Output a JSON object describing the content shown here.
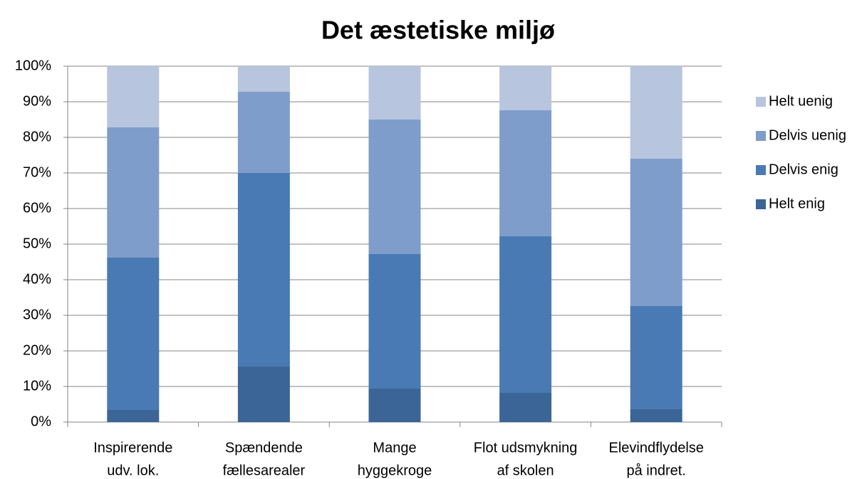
{
  "chart_data": {
    "type": "stacked_bar",
    "title": "Det æstetiske miljø",
    "categories": [
      [
        "Inspirerende",
        "udv. lok."
      ],
      [
        "Spændende",
        "fællesarealer"
      ],
      [
        "Mange",
        "hyggekroge"
      ],
      [
        "Flot udsmykning",
        "af skolen"
      ],
      [
        "Elevindflydelse",
        "på indret."
      ]
    ],
    "series": [
      {
        "name": "Helt enig",
        "color": "#3c6597",
        "values": [
          3.4,
          15.6,
          9.4,
          8.2,
          3.6
        ]
      },
      {
        "name": "Delvis enig",
        "color": "#4a7ab4",
        "values": [
          42.8,
          54.4,
          37.8,
          44.0,
          29.0
        ]
      },
      {
        "name": "Delvis uenig",
        "color": "#7f9dca",
        "values": [
          36.6,
          22.8,
          37.8,
          35.4,
          41.4
        ]
      },
      {
        "name": "Helt uenig",
        "color": "#b7c5df",
        "values": [
          17.2,
          7.2,
          15.0,
          12.4,
          26.0
        ]
      }
    ],
    "ylim": [
      0,
      100
    ],
    "yticks": [
      {
        "value": 0,
        "label": "0%"
      },
      {
        "value": 10,
        "label": "10%"
      },
      {
        "value": 20,
        "label": "20%"
      },
      {
        "value": 30,
        "label": "30%"
      },
      {
        "value": 40,
        "label": "40%"
      },
      {
        "value": 50,
        "label": "50%"
      },
      {
        "value": 60,
        "label": "60%"
      },
      {
        "value": 70,
        "label": "70%"
      },
      {
        "value": 80,
        "label": "80%"
      },
      {
        "value": 90,
        "label": "90%"
      },
      {
        "value": 100,
        "label": "100%"
      }
    ],
    "grid": true,
    "legend": "right"
  }
}
